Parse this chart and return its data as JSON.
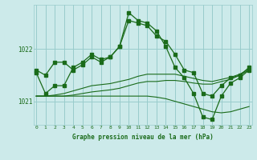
{
  "title": "Graphe pression niveau de la mer (hPa)",
  "bg_color": "#cceaea",
  "plot_bg_color": "#cceaea",
  "grid_color": "#99cccc",
  "line_color": "#1a6b1a",
  "x_min": 0,
  "x_max": 23,
  "y_min": 1020.55,
  "y_max": 1022.85,
  "yticks": [
    1021,
    1022
  ],
  "xticks": [
    0,
    1,
    2,
    3,
    4,
    5,
    6,
    7,
    8,
    9,
    10,
    11,
    12,
    13,
    14,
    15,
    16,
    17,
    18,
    19,
    20,
    21,
    22,
    23
  ],
  "main_series": [
    1021.55,
    1021.15,
    1021.3,
    1021.3,
    1021.65,
    1021.75,
    1021.9,
    1021.8,
    1021.85,
    1022.05,
    1022.7,
    1022.55,
    1022.5,
    1022.35,
    1022.05,
    1021.65,
    1021.45,
    1021.15,
    1020.7,
    1020.65,
    1021.1,
    1021.35,
    1021.45,
    1021.6
  ],
  "upper_series": [
    1021.6,
    1021.5,
    1021.75,
    1021.75,
    1021.6,
    1021.7,
    1021.85,
    1021.75,
    1021.85,
    1022.05,
    1022.55,
    1022.5,
    1022.45,
    1022.25,
    1022.15,
    1021.9,
    1021.6,
    1021.55,
    1021.15,
    1021.1,
    1021.3,
    1021.45,
    1021.5,
    1021.65
  ],
  "thin_lines": [
    [
      1021.1,
      1021.1,
      1021.1,
      1021.1,
      1021.1,
      1021.1,
      1021.1,
      1021.1,
      1021.1,
      1021.1,
      1021.1,
      1021.1,
      1021.1,
      1021.08,
      1021.05,
      1021.0,
      1020.95,
      1020.9,
      1020.85,
      1020.8,
      1020.78,
      1020.8,
      1020.85,
      1020.9
    ],
    [
      1021.1,
      1021.1,
      1021.1,
      1021.1,
      1021.12,
      1021.15,
      1021.18,
      1021.2,
      1021.22,
      1021.25,
      1021.3,
      1021.35,
      1021.38,
      1021.38,
      1021.4,
      1021.4,
      1021.38,
      1021.35,
      1021.33,
      1021.33,
      1021.38,
      1021.42,
      1021.5,
      1021.6
    ],
    [
      1021.1,
      1021.1,
      1021.12,
      1021.15,
      1021.2,
      1021.25,
      1021.3,
      1021.32,
      1021.34,
      1021.38,
      1021.42,
      1021.48,
      1021.52,
      1021.52,
      1021.52,
      1021.52,
      1021.48,
      1021.44,
      1021.4,
      1021.38,
      1021.42,
      1021.46,
      1021.52,
      1021.62
    ]
  ]
}
